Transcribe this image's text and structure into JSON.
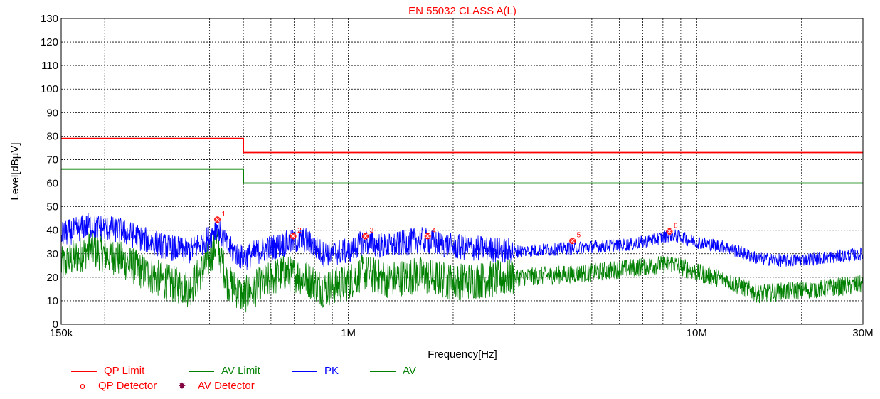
{
  "chart_data": {
    "type": "line",
    "title": "EN 55032 CLASS A(L)",
    "xlabel": "Frequency[Hz]",
    "ylabel": "Level[dBµV]",
    "x_scale": "log",
    "xlim": [
      150000,
      30000000
    ],
    "ylim": [
      0,
      130
    ],
    "x_ticks": [
      {
        "value": 150000,
        "label": "150k"
      },
      {
        "value": 1000000,
        "label": "1M"
      },
      {
        "value": 10000000,
        "label": "10M"
      },
      {
        "value": 30000000,
        "label": "30M"
      }
    ],
    "y_ticks": [
      0,
      10,
      20,
      30,
      40,
      50,
      60,
      70,
      80,
      90,
      100,
      110,
      120,
      130
    ],
    "grid": true,
    "legend_position": "bottom-left",
    "series": [
      {
        "name": "QP Limit",
        "color": "#ff0000",
        "style": "step",
        "x": [
          150000,
          500000,
          500000,
          30000000
        ],
        "y": [
          79,
          79,
          73,
          73
        ]
      },
      {
        "name": "AV Limit",
        "color": "#008000",
        "style": "step",
        "x": [
          150000,
          500000,
          500000,
          30000000
        ],
        "y": [
          66,
          66,
          60,
          60
        ]
      },
      {
        "name": "PK",
        "color": "#0000ff",
        "style": "noisy",
        "x": [
          150000,
          180000,
          220000,
          260000,
          300000,
          350000,
          400000,
          420000,
          450000,
          500000,
          550000,
          650000,
          750000,
          850000,
          1000000,
          1100000,
          1300000,
          1600000,
          2000000,
          2500000,
          3000000,
          4000000,
          5000000,
          6500000,
          7500000,
          8500000,
          10000000,
          12000000,
          15000000,
          18000000,
          22000000,
          30000000
        ],
        "y": [
          38,
          42,
          40,
          36,
          33,
          31,
          37,
          42,
          33,
          28,
          31,
          34,
          36,
          30,
          31,
          35,
          33,
          36,
          33,
          32,
          31,
          32,
          33,
          34,
          36,
          38,
          35,
          33,
          28,
          27,
          28,
          30
        ],
        "noise": 3.5
      },
      {
        "name": "AV",
        "color": "#008000",
        "style": "noisy",
        "x": [
          150000,
          180000,
          220000,
          260000,
          300000,
          350000,
          400000,
          420000,
          450000,
          500000,
          550000,
          650000,
          750000,
          850000,
          1000000,
          1100000,
          1300000,
          1600000,
          2000000,
          2500000,
          3000000,
          4000000,
          5000000,
          6500000,
          7500000,
          8500000,
          10000000,
          12000000,
          15000000,
          18000000,
          22000000,
          30000000
        ],
        "y": [
          25,
          32,
          28,
          22,
          18,
          15,
          28,
          35,
          18,
          12,
          16,
          22,
          20,
          15,
          18,
          22,
          19,
          21,
          18,
          19,
          20,
          21,
          22,
          24,
          25,
          26,
          22,
          19,
          13,
          14,
          15,
          17
        ],
        "noise": 5
      }
    ],
    "detector_markers": [
      {
        "id": "1",
        "x": 421000,
        "y": 44.5
      },
      {
        "id": "2",
        "x": 695000,
        "y": 37.5
      },
      {
        "id": "3",
        "x": 1120000,
        "y": 37.5
      },
      {
        "id": "4",
        "x": 1690000,
        "y": 37.5
      },
      {
        "id": "5",
        "x": 4400000,
        "y": 35.5
      },
      {
        "id": "6",
        "x": 8350000,
        "y": 39.5
      }
    ]
  },
  "legend": {
    "items": [
      {
        "label": "QP Limit",
        "color": "#ff0000",
        "kind": "line"
      },
      {
        "label": "AV Limit",
        "color": "#008000",
        "kind": "line"
      },
      {
        "label": "PK",
        "color": "#0000ff",
        "kind": "line"
      },
      {
        "label": "AV",
        "color": "#008000",
        "kind": "line"
      },
      {
        "label": "QP Detector",
        "color": "#ff0000",
        "kind": "circle-icon"
      },
      {
        "label": "AV Detector",
        "color": "#800040",
        "kind": "star-icon"
      }
    ]
  }
}
